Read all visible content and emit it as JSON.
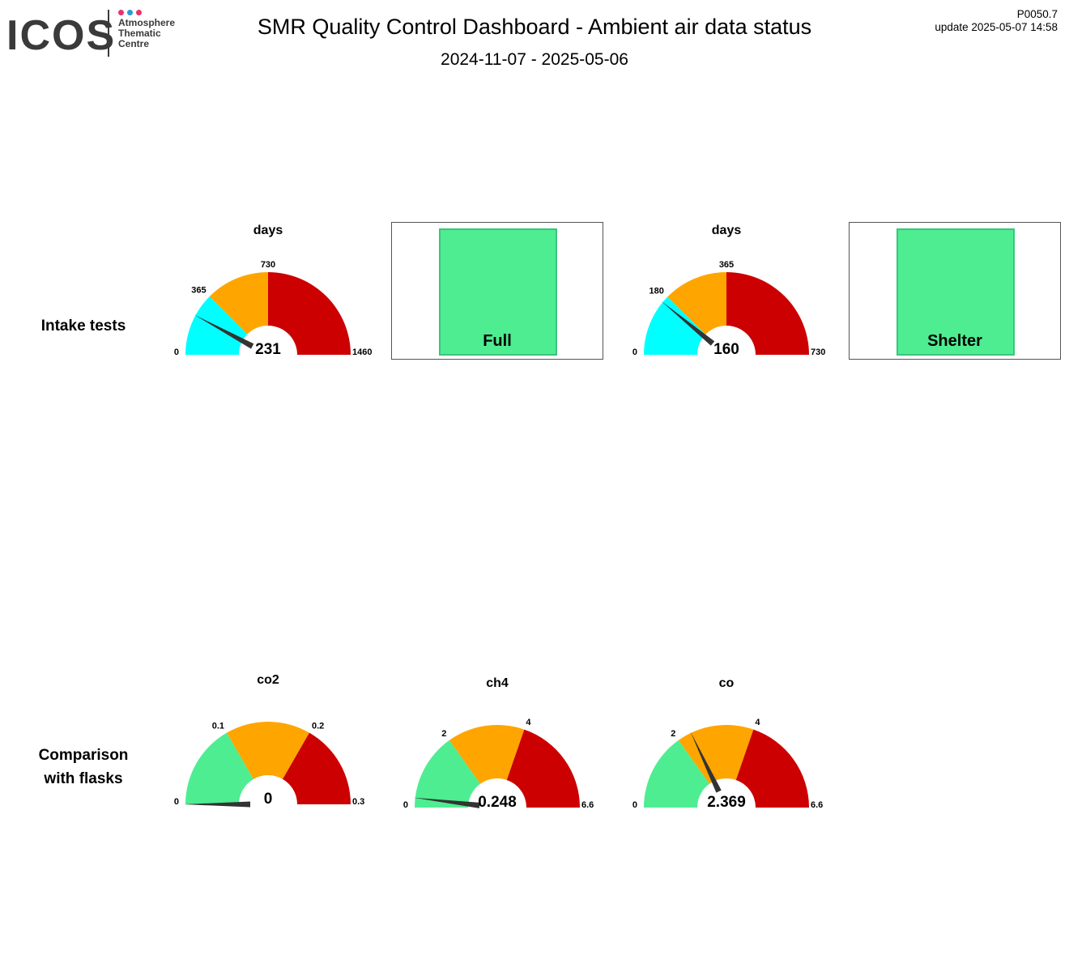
{
  "header": {
    "logo_text": "ICOS",
    "logo_subtitle": [
      "Atmosphere",
      "Thematic",
      "Centre"
    ],
    "logo_dot_colors": [
      "#e8336a",
      "#2b9bd9",
      "#e8336a"
    ],
    "title": "SMR  Quality Control Dashboard - Ambient air data status",
    "date_range": "2024-11-07 - 2025-05-06",
    "code": "P0050.7",
    "update": "update  2025-05-07 14:58"
  },
  "rows": [
    {
      "label_lines": [
        "Intake tests"
      ]
    },
    {
      "label_lines": [
        "Comparison",
        "with flasks"
      ]
    }
  ],
  "status_boxes": [
    {
      "label": "Full",
      "color": "#4eed91"
    },
    {
      "label": "Shelter",
      "color": "#4eed91"
    }
  ],
  "chart_data": [
    {
      "type": "gauge",
      "title": "days",
      "min": 0,
      "max": 1460,
      "value": 231,
      "value_label": "231",
      "bands": [
        {
          "from": 0,
          "to": 365,
          "color": "#00ffff"
        },
        {
          "from": 365,
          "to": 730,
          "color": "#ffa500"
        },
        {
          "from": 730,
          "to": 1460,
          "color": "#cc0000"
        }
      ],
      "tick_labels": [
        "0",
        "365",
        "730",
        "1460"
      ]
    },
    {
      "type": "gauge",
      "title": "days",
      "min": 0,
      "max": 730,
      "value": 160,
      "value_label": "160",
      "bands": [
        {
          "from": 0,
          "to": 180,
          "color": "#00ffff"
        },
        {
          "from": 180,
          "to": 365,
          "color": "#ffa500"
        },
        {
          "from": 365,
          "to": 730,
          "color": "#cc0000"
        }
      ],
      "tick_labels": [
        "0",
        "180",
        "365",
        "730"
      ]
    },
    {
      "type": "gauge",
      "title": "co2",
      "min": 0,
      "max": 0.3,
      "value": 0,
      "value_label": "0",
      "bands": [
        {
          "from": 0,
          "to": 0.1,
          "color": "#4eed91"
        },
        {
          "from": 0.1,
          "to": 0.2,
          "color": "#ffa500"
        },
        {
          "from": 0.2,
          "to": 0.3,
          "color": "#cc0000"
        }
      ],
      "tick_labels": [
        "0",
        "0.1",
        "0.2",
        "0.3"
      ]
    },
    {
      "type": "gauge",
      "title": "ch4",
      "min": 0,
      "max": 6.6,
      "value": 0.248,
      "value_label": "0.248",
      "bands": [
        {
          "from": 0,
          "to": 2,
          "color": "#4eed91"
        },
        {
          "from": 2,
          "to": 4,
          "color": "#ffa500"
        },
        {
          "from": 4,
          "to": 6.6,
          "color": "#cc0000"
        }
      ],
      "tick_labels": [
        "0",
        "2",
        "4",
        "6.6"
      ]
    },
    {
      "type": "gauge",
      "title": "co",
      "min": 0,
      "max": 6.6,
      "value": 2.369,
      "value_label": "2.369",
      "bands": [
        {
          "from": 0,
          "to": 2,
          "color": "#4eed91"
        },
        {
          "from": 2,
          "to": 4,
          "color": "#ffa500"
        },
        {
          "from": 4,
          "to": 6.6,
          "color": "#cc0000"
        }
      ],
      "tick_labels": [
        "0",
        "2",
        "4",
        "6.6"
      ]
    }
  ]
}
